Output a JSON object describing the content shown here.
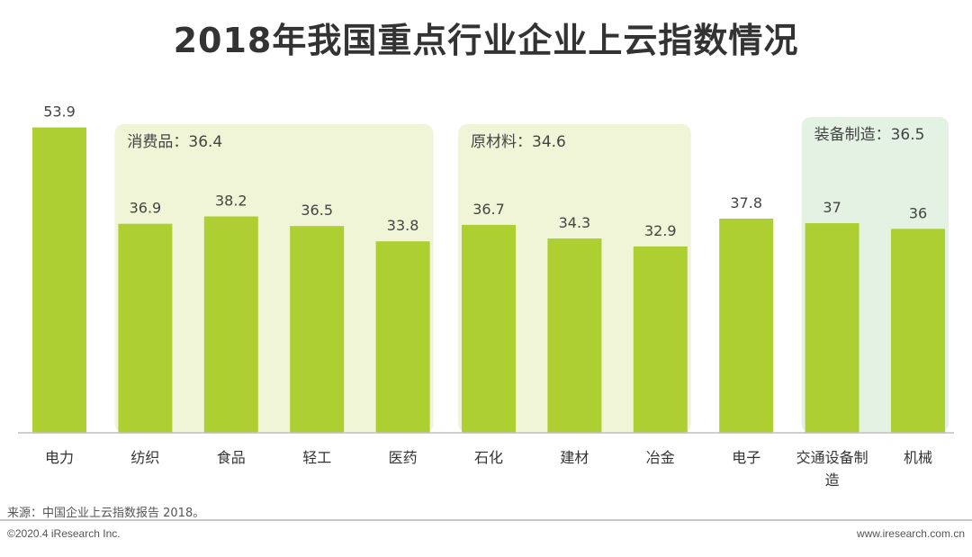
{
  "title": "2018年我国重点行业企业上云指数情况",
  "footer": {
    "source": "来源：中国企业上云指数报告 2018。",
    "copyright": "©2020.4 iResearch Inc.",
    "site": "www.iresearch.com.cn"
  },
  "colors": {
    "bar": "#aecf32",
    "group_bg": "#f0f5d8",
    "group_bg_alt": "#e3f2e3",
    "title": "#333333",
    "text": "#555555"
  },
  "chart_data": {
    "type": "bar",
    "categories": [
      "电力",
      "纺织",
      "食品",
      "轻工",
      "医药",
      "石化",
      "建材",
      "冶金",
      "电子",
      "交通设备制造",
      "机械"
    ],
    "values": [
      53.9,
      36.9,
      38.2,
      36.5,
      33.8,
      36.7,
      34.3,
      32.9,
      37.8,
      37,
      36
    ],
    "data_labels": [
      "53.9",
      "36.9",
      "38.2",
      "36.5",
      "33.8",
      "36.7",
      "34.3",
      "32.9",
      "37.8",
      "37",
      "36"
    ],
    "ylim": [
      0,
      54
    ],
    "grid": false,
    "groups": [
      {
        "label": "消费品：36.4",
        "categories": [
          "纺织",
          "食品",
          "轻工",
          "医药"
        ],
        "value": 36.4
      },
      {
        "label": "原材料：34.6",
        "categories": [
          "石化",
          "建材",
          "冶金"
        ],
        "value": 34.6
      },
      {
        "label": "装备制造：36.5",
        "categories": [
          "交通设备制造",
          "机械"
        ],
        "value": 36.5
      }
    ]
  }
}
